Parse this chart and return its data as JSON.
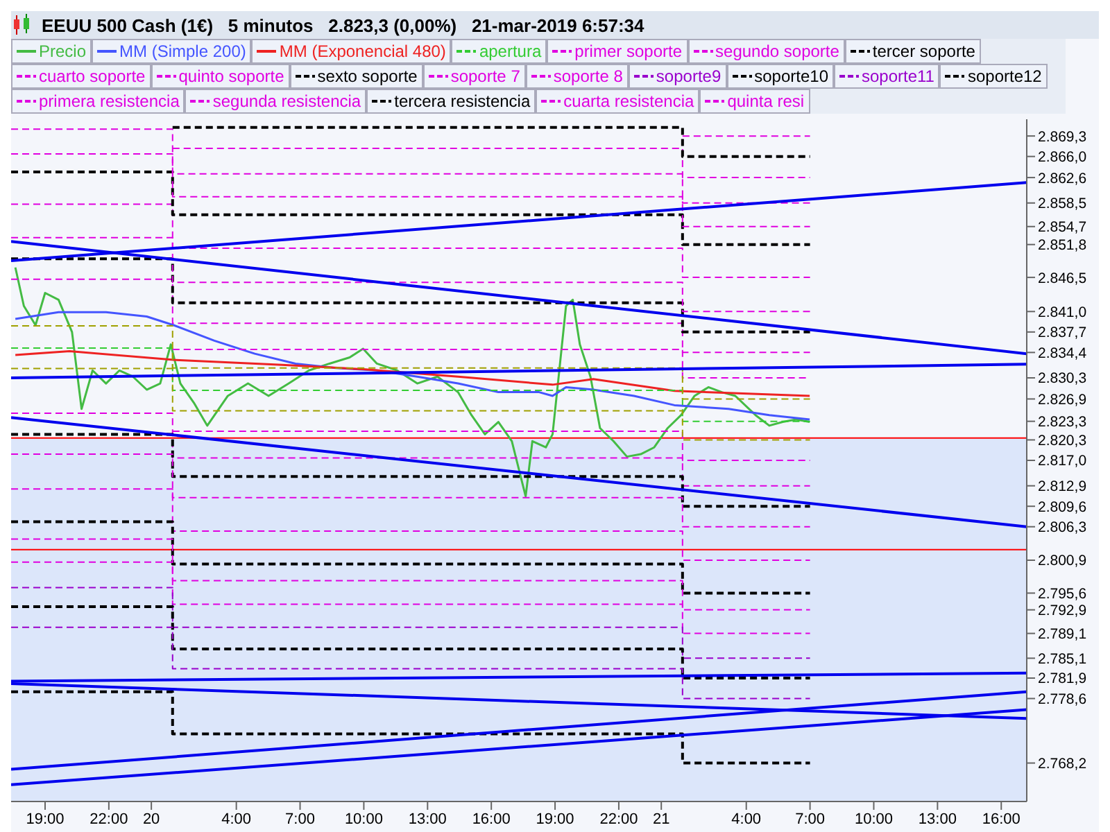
{
  "chart_data": {
    "type": "line",
    "title": "EEUU 500 Cash (1€)   5 minutos   2.823,3 (0,00%)   21-mar-2019 6:57:34",
    "legend": "top",
    "grid": false,
    "xlim": [
      "2019-03-19T17:24",
      "2019-03-21T17:12"
    ],
    "xticks": [
      {
        "value": "2019-03-19T19:00",
        "label": "19:00"
      },
      {
        "value": "2019-03-19T22:00",
        "label": "22:00"
      },
      {
        "value": "2019-03-20T00:00",
        "label": "20"
      },
      {
        "value": "2019-03-20T04:00",
        "label": "4:00"
      },
      {
        "value": "2019-03-20T07:00",
        "label": "7:00"
      },
      {
        "value": "2019-03-20T10:00",
        "label": "10:00"
      },
      {
        "value": "2019-03-20T13:00",
        "label": "13:00"
      },
      {
        "value": "2019-03-20T16:00",
        "label": "16:00"
      },
      {
        "value": "2019-03-20T19:00",
        "label": "19:00"
      },
      {
        "value": "2019-03-20T22:00",
        "label": "22:00"
      },
      {
        "value": "2019-03-21T00:00",
        "label": "21"
      },
      {
        "value": "2019-03-21T04:00",
        "label": "4:00"
      },
      {
        "value": "2019-03-21T07:00",
        "label": "7:00"
      },
      {
        "value": "2019-03-21T10:00",
        "label": "10:00"
      },
      {
        "value": "2019-03-21T13:00",
        "label": "13:00"
      },
      {
        "value": "2019-03-21T16:00",
        "label": "16:00"
      }
    ],
    "ylim": [
      2762,
      2872
    ],
    "yticks": [
      {
        "value": 2869.3,
        "label": "2.869,3"
      },
      {
        "value": 2866.0,
        "label": "2.866,0"
      },
      {
        "value": 2862.6,
        "label": "2.862,6"
      },
      {
        "value": 2858.5,
        "label": "2.858,5"
      },
      {
        "value": 2854.7,
        "label": "2.854,7"
      },
      {
        "value": 2851.8,
        "label": "2.851,8"
      },
      {
        "value": 2846.5,
        "label": "2.846,5"
      },
      {
        "value": 2841.0,
        "label": "2.841,0"
      },
      {
        "value": 2837.7,
        "label": "2.837,7"
      },
      {
        "value": 2834.4,
        "label": "2.834,4"
      },
      {
        "value": 2830.3,
        "label": "2.830,3"
      },
      {
        "value": 2826.9,
        "label": "2.826,9"
      },
      {
        "value": 2823.3,
        "label": "2.823,3"
      },
      {
        "value": 2820.3,
        "label": "2.820,3"
      },
      {
        "value": 2817.0,
        "label": "2.817,0"
      },
      {
        "value": 2812.9,
        "label": "2.812,9"
      },
      {
        "value": 2809.6,
        "label": "2.809,6"
      },
      {
        "value": 2806.3,
        "label": "2.806,3"
      },
      {
        "value": 2800.9,
        "label": "2.800,9"
      },
      {
        "value": 2795.6,
        "label": "2.795,6"
      },
      {
        "value": 2792.9,
        "label": "2.792,9"
      },
      {
        "value": 2789.1,
        "label": "2.789,1"
      },
      {
        "value": 2785.1,
        "label": "2.785,1"
      },
      {
        "value": 2781.9,
        "label": "2.781,9"
      },
      {
        "value": 2778.6,
        "label": "2.778,6"
      },
      {
        "value": 2768.2,
        "label": "2.768,2"
      }
    ],
    "bands": [
      {
        "axis": "y",
        "from": 2762,
        "to": 2820.6,
        "color": "#dce6fa"
      }
    ],
    "ref_lines": [
      {
        "axis": "y",
        "value": 2820.6,
        "color": "#ff0000"
      },
      {
        "axis": "y",
        "value": 2802.6,
        "color": "#ff0000"
      }
    ],
    "series": [
      {
        "name": "Precio",
        "color": "#44bb44",
        "x": [
          "2019-03-19T17:36",
          "2019-03-19T18:00",
          "2019-03-19T18:33",
          "2019-03-19T19:00",
          "2019-03-19T19:38",
          "2019-03-19T20:16",
          "2019-03-19T20:43",
          "2019-03-19T21:14",
          "2019-03-19T21:52",
          "2019-03-19T22:30",
          "2019-03-19T23:08",
          "2019-03-19T23:47",
          "2019-03-20T00:25",
          "2019-03-20T00:55",
          "2019-03-20T01:22",
          "2019-03-20T02:00",
          "2019-03-20T02:38",
          "2019-03-20T03:36",
          "2019-03-20T04:33",
          "2019-03-20T05:31",
          "2019-03-20T06:28",
          "2019-03-20T07:25",
          "2019-03-20T08:23",
          "2019-03-20T09:20",
          "2019-03-20T09:58",
          "2019-03-20T10:37",
          "2019-03-20T11:34",
          "2019-03-20T12:31",
          "2019-03-20T13:28",
          "2019-03-20T14:26",
          "2019-03-20T15:04",
          "2019-03-20T15:42",
          "2019-03-20T16:20",
          "2019-03-20T16:58",
          "2019-03-20T17:37",
          "2019-03-20T17:56",
          "2019-03-20T18:34",
          "2019-03-20T18:53",
          "2019-03-20T19:12",
          "2019-03-20T19:31",
          "2019-03-20T19:50",
          "2019-03-20T20:10",
          "2019-03-20T20:40",
          "2019-03-20T21:07",
          "2019-03-20T21:45",
          "2019-03-20T22:23",
          "2019-03-20T23:02",
          "2019-03-20T23:40",
          "2019-03-21T00:18",
          "2019-03-21T00:56",
          "2019-03-21T01:34",
          "2019-03-21T02:13",
          "2019-03-21T02:51",
          "2019-03-21T03:29",
          "2019-03-21T04:26",
          "2019-03-21T05:05",
          "2019-03-21T05:43",
          "2019-03-21T06:21",
          "2019-03-21T06:59"
        ],
        "values": [
          2848.1,
          2841.9,
          2838.8,
          2844.0,
          2842.9,
          2837.7,
          2825.3,
          2831.5,
          2829.4,
          2831.5,
          2830.5,
          2828.4,
          2829.4,
          2835.7,
          2829.4,
          2826.3,
          2822.6,
          2827.4,
          2829.4,
          2827.4,
          2829.4,
          2831.5,
          2832.6,
          2833.6,
          2835.0,
          2832.6,
          2831.5,
          2829.4,
          2830.5,
          2828.0,
          2824.3,
          2821.2,
          2823.2,
          2820.1,
          2811.2,
          2820.1,
          2819.1,
          2821.2,
          2831.5,
          2841.9,
          2842.9,
          2835.7,
          2830.5,
          2822.2,
          2820.1,
          2817.6,
          2818.0,
          2819.1,
          2822.2,
          2824.3,
          2827.4,
          2828.8,
          2828.0,
          2827.4,
          2824.3,
          2822.6,
          2823.2,
          2823.6,
          2823.2
        ]
      },
      {
        "name": "MM (Simple 200)",
        "color": "#4455ff",
        "x": [
          "2019-03-19T17:36",
          "2019-03-19T19:38",
          "2019-03-19T21:52",
          "2019-03-19T23:47",
          "2019-03-20T01:03",
          "2019-03-20T02:58",
          "2019-03-20T04:52",
          "2019-03-20T06:47",
          "2019-03-20T08:41",
          "2019-03-20T10:37",
          "2019-03-20T12:31",
          "2019-03-20T14:26",
          "2019-03-20T16:20",
          "2019-03-20T18:15",
          "2019-03-20T18:53",
          "2019-03-20T19:31",
          "2019-03-20T20:48",
          "2019-03-20T22:43",
          "2019-03-21T00:37",
          "2019-03-21T03:10",
          "2019-03-21T05:05",
          "2019-03-21T06:59"
        ],
        "values": [
          2839.8,
          2840.9,
          2840.9,
          2840.2,
          2838.8,
          2836.3,
          2834.2,
          2832.6,
          2831.9,
          2831.5,
          2830.5,
          2829.4,
          2828.0,
          2828.0,
          2827.4,
          2828.8,
          2828.4,
          2827.4,
          2825.9,
          2825.3,
          2824.3,
          2823.6
        ]
      },
      {
        "name": "MM (Exponencial 480)",
        "color": "#ee2222",
        "x": [
          "2019-03-19T17:36",
          "2019-03-19T20:09",
          "2019-03-20T01:03",
          "2019-03-20T06:09",
          "2019-03-20T09:58",
          "2019-03-20T14:26",
          "2019-03-20T18:53",
          "2019-03-20T20:48",
          "2019-03-21T00:37",
          "2019-03-21T06:59"
        ],
        "values": [
          2834.0,
          2834.6,
          2833.2,
          2832.4,
          2831.7,
          2830.5,
          2829.2,
          2830.1,
          2828.2,
          2827.4
        ]
      },
      {
        "name": "apertura",
        "type": "step",
        "line_style": "dashed",
        "color": "#33cc33",
        "x": [
          "2019-03-19T17:24",
          "2019-03-20T01:00",
          "2019-03-21T01:00",
          "2019-03-21T07:00"
        ],
        "values": [
          2835.1,
          2828.3,
          2823.3,
          2823.3
        ]
      },
      {
        "name": "primer soporte",
        "type": "step",
        "line_style": "dashed",
        "color": "#e000e0",
        "x": [
          "2019-03-20T01:00",
          "2019-03-21T01:00",
          "2019-03-21T07:00"
        ],
        "values": [
          2821.7,
          2817.0,
          2817.0
        ]
      },
      {
        "name": "segundo soporte",
        "type": "step",
        "line_style": "dashed",
        "color": "#e000e0",
        "x": [
          "2019-03-19T17:24",
          "2019-03-20T01:00",
          "2019-03-21T01:00",
          "2019-03-21T07:00"
        ],
        "values": [
          2824.6,
          2817.4,
          2812.9,
          2812.9
        ]
      },
      {
        "name": "tercer soporte",
        "type": "step",
        "line_style": "dashed",
        "color": "#000000",
        "x": [
          "2019-03-19T17:24",
          "2019-03-20T01:00",
          "2019-03-21T01:00",
          "2019-03-21T07:00"
        ],
        "values": [
          2821.2,
          2814.4,
          2809.6,
          2809.6
        ]
      },
      {
        "name": "cuarto soporte",
        "type": "step",
        "line_style": "dashed",
        "color": "#e000e0",
        "x": [
          "2019-03-19T17:24",
          "2019-03-20T01:00",
          "2019-03-21T01:00",
          "2019-03-21T07:00"
        ],
        "values": [
          2818.0,
          2811.0,
          2806.3,
          2806.3
        ]
      },
      {
        "name": "quinto soporte",
        "type": "step",
        "line_style": "dashed",
        "color": "#e000e0",
        "x": [
          "2019-03-19T17:24",
          "2019-03-20T01:00",
          "2019-03-21T01:00",
          "2019-03-21T07:00"
        ],
        "values": [
          2812.4,
          2805.6,
          2800.9,
          2800.9
        ]
      },
      {
        "name": "sexto soporte",
        "type": "step",
        "line_style": "dashed",
        "color": "#000000",
        "x": [
          "2019-03-19T17:24",
          "2019-03-20T01:00",
          "2019-03-21T01:00",
          "2019-03-21T07:00"
        ],
        "values": [
          2807.1,
          2800.3,
          2795.6,
          2795.6
        ]
      },
      {
        "name": "soporte 7",
        "type": "step",
        "line_style": "dashed",
        "color": "#e000e0",
        "x": [
          "2019-03-19T17:24",
          "2019-03-20T01:00",
          "2019-03-21T01:00",
          "2019-03-21T07:00"
        ],
        "values": [
          2804.3,
          2797.6,
          2792.9,
          2792.9
        ]
      },
      {
        "name": "soporte 8",
        "type": "step",
        "line_style": "dashed",
        "color": "#e000e0",
        "x": [
          "2019-03-19T17:24",
          "2019-03-20T01:00",
          "2019-03-21T01:00",
          "2019-03-21T07:00"
        ],
        "values": [
          2800.6,
          2793.8,
          2789.1,
          2789.1
        ]
      },
      {
        "name": "soporte9",
        "type": "step",
        "line_style": "dashed",
        "color": "#9900cc",
        "x": [
          "2019-03-19T17:24",
          "2019-03-20T01:00",
          "2019-03-21T01:00",
          "2019-03-21T07:00"
        ],
        "values": [
          2796.5,
          2790.1,
          2785.1,
          2785.1
        ]
      },
      {
        "name": "soporte10",
        "type": "step",
        "line_style": "dashed",
        "color": "#000000",
        "x": [
          "2019-03-19T17:24",
          "2019-03-20T01:00",
          "2019-03-21T01:00",
          "2019-03-21T07:00"
        ],
        "values": [
          2793.4,
          2786.6,
          2781.9,
          2781.9
        ]
      },
      {
        "name": "soporte11",
        "type": "step",
        "line_style": "dashed",
        "color": "#9900cc",
        "x": [
          "2019-03-19T17:24",
          "2019-03-20T01:00",
          "2019-03-21T01:00",
          "2019-03-21T07:00"
        ],
        "values": [
          2790.1,
          2783.4,
          2778.6,
          2778.6
        ]
      },
      {
        "name": "soporte12",
        "type": "step",
        "line_style": "dashed",
        "color": "#000000",
        "x": [
          "2019-03-19T17:24",
          "2019-03-20T01:00",
          "2019-03-21T01:00",
          "2019-03-21T07:00"
        ],
        "values": [
          2779.7,
          2772.9,
          2768.2,
          2768.2
        ]
      },
      {
        "name": "primera resistencia",
        "type": "step",
        "line_style": "dashed",
        "color": "#e000e0",
        "x": [
          "2019-03-20T01:00",
          "2019-03-21T01:00",
          "2019-03-21T07:00"
        ],
        "values": [
          2834.9,
          2830.3,
          2830.3
        ]
      },
      {
        "name": "segunda resistencia",
        "type": "step",
        "line_style": "dashed",
        "color": "#e000e0",
        "x": [
          "2019-03-19T17:24",
          "2019-03-20T01:00",
          "2019-03-21T01:00",
          "2019-03-21T07:00"
        ],
        "values": [
          2846.2,
          2839.1,
          2834.4,
          2834.4
        ]
      },
      {
        "name": "tercera resistencia",
        "type": "step",
        "line_style": "dashed",
        "color": "#000000",
        "x": [
          "2019-03-19T17:24",
          "2019-03-20T01:00",
          "2019-03-21T01:00",
          "2019-03-21T07:00"
        ],
        "values": [
          2849.5,
          2842.4,
          2837.7,
          2837.7
        ]
      },
      {
        "name": "cuarta resistencia",
        "type": "step",
        "line_style": "dashed",
        "color": "#e000e0",
        "x": [
          "2019-03-19T17:24",
          "2019-03-20T01:00",
          "2019-03-21T01:00",
          "2019-03-21T07:00"
        ],
        "values": [
          2852.9,
          2845.7,
          2841.0,
          2841.0
        ]
      },
      {
        "name": "quinta resi",
        "type": "step",
        "line_style": "dashed",
        "color": "#e000e0",
        "x": [
          "2019-03-19T17:24",
          "2019-03-20T01:00",
          "2019-03-21T01:00",
          "2019-03-21T07:00"
        ],
        "values": [
          2858.3,
          2851.2,
          2846.5,
          2846.5
        ]
      },
      {
        "type": "step",
        "line_style": "dashed",
        "color": "#000000",
        "x": [
          "2019-03-19T17:24",
          "2019-03-20T01:00",
          "2019-03-21T01:00",
          "2019-03-21T07:00"
        ],
        "values": [
          2863.5,
          2856.6,
          2851.8,
          2851.8
        ]
      },
      {
        "type": "step",
        "line_style": "dashed",
        "color": "#e000e0",
        "x": [
          "2019-03-19T17:24",
          "2019-03-20T01:00",
          "2019-03-21T01:00",
          "2019-03-21T07:00"
        ],
        "values": [
          2866.4,
          2859.5,
          2854.7,
          2854.7
        ]
      },
      {
        "type": "step",
        "line_style": "dashed",
        "color": "#e000e0",
        "x": [
          "2019-03-19T17:24",
          "2019-03-20T01:00",
          "2019-03-21T01:00",
          "2019-03-21T07:00"
        ],
        "values": [
          2870.4,
          2863.2,
          2858.5,
          2858.5
        ]
      },
      {
        "type": "step",
        "line_style": "dashed",
        "color": "#e000e0",
        "x": [
          "2019-03-20T01:00",
          "2019-03-21T01:00",
          "2019-03-21T07:00"
        ],
        "values": [
          2867.3,
          2862.6,
          2862.6
        ]
      },
      {
        "type": "step",
        "line_style": "dashed",
        "color": "#000000",
        "x": [
          "2019-03-20T01:00",
          "2019-03-21T01:00",
          "2019-03-21T07:00"
        ],
        "values": [
          2870.7,
          2866.0,
          2866.0
        ]
      },
      {
        "type": "step",
        "line_style": "dashed",
        "color": "#e000e0",
        "x": [
          "2019-03-21T01:00",
          "2019-03-21T07:00"
        ],
        "values": [
          2869.3,
          2869.3
        ]
      },
      {
        "type": "step",
        "line_style": "dashed",
        "color": "#a0a000",
        "x": [
          "2019-03-19T17:24",
          "2019-03-20T01:00",
          "2019-03-21T01:00",
          "2019-03-21T07:00"
        ],
        "values": [
          2838.7,
          2831.9,
          2826.9,
          2826.9
        ]
      },
      {
        "type": "step",
        "line_style": "dashed",
        "color": "#a0a000",
        "x": [
          "2019-03-19T17:24",
          "2019-03-20T01:00",
          "2019-03-21T01:00",
          "2019-03-21T07:00"
        ],
        "values": [
          2831.8,
          2825.0,
          2820.3,
          2820.3
        ]
      },
      {
        "type": "line",
        "color": "#0000ee",
        "x": [
          "2019-03-19T17:24",
          "2019-03-21T17:12"
        ],
        "values": [
          2849.2,
          2861.8
        ]
      },
      {
        "type": "line",
        "color": "#0000ee",
        "x": [
          "2019-03-19T17:24",
          "2019-03-21T17:12"
        ],
        "values": [
          2852.3,
          2834.2
        ]
      },
      {
        "type": "line",
        "color": "#0000ee",
        "x": [
          "2019-03-19T17:24",
          "2019-03-21T17:12"
        ],
        "values": [
          2830.3,
          2832.5
        ]
      },
      {
        "type": "line",
        "color": "#0000ee",
        "x": [
          "2019-03-19T17:24",
          "2019-03-21T17:12"
        ],
        "values": [
          2823.9,
          2806.3
        ]
      },
      {
        "type": "line",
        "color": "#0000ee",
        "x": [
          "2019-03-19T17:24",
          "2019-03-21T17:12"
        ],
        "values": [
          2781.4,
          2782.7
        ]
      },
      {
        "type": "line",
        "color": "#0000ee",
        "x": [
          "2019-03-19T17:24",
          "2019-03-21T17:12"
        ],
        "values": [
          2781.0,
          2775.4
        ]
      },
      {
        "type": "line",
        "color": "#0000ee",
        "x": [
          "2019-03-19T17:24",
          "2019-03-21T17:12"
        ],
        "values": [
          2767.2,
          2779.7
        ]
      },
      {
        "type": "line",
        "color": "#0000ee",
        "x": [
          "2019-03-19T17:24",
          "2019-03-21T17:12"
        ],
        "values": [
          2764.7,
          2776.8
        ]
      }
    ]
  }
}
